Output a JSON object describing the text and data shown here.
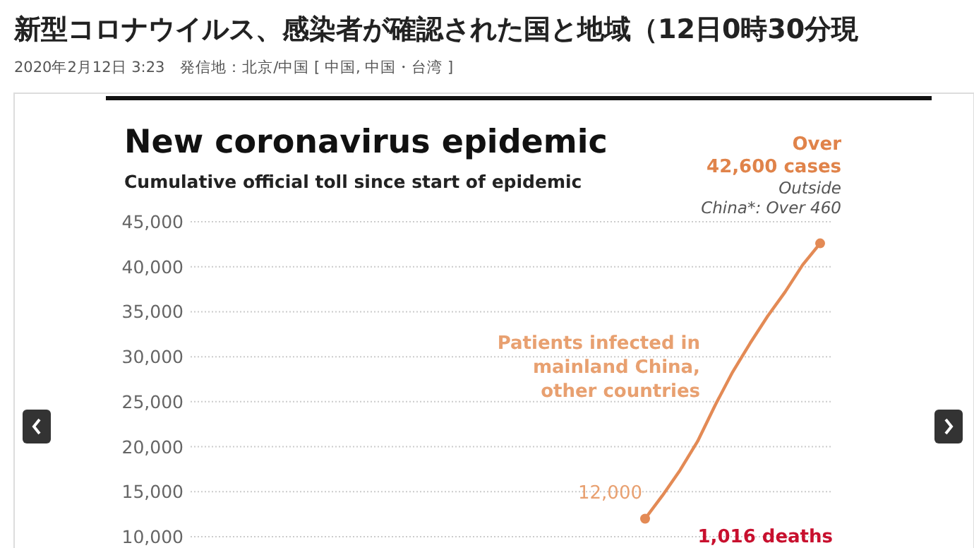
{
  "chart_data": {
    "type": "line",
    "title": "New coronavirus epidemic",
    "subtitle": "Cumulative official toll since start of epidemic",
    "annotations": [
      "新型コロナウイルス、感染者が確認された国と地域（12日0時30分現",
      "2020年2月12日 3:23　発信地：北京/中国 [ 中国, 中国・台湾 ]",
      "Over\n42,600 cases",
      "Outside\nChina*: Over 460",
      "Patients infected in\nmainland China,\nother countries",
      "12,000",
      "1,016 deaths"
    ],
    "categories": [
      null,
      null,
      null,
      null,
      null,
      null,
      null,
      null,
      null,
      null,
      null,
      null,
      null,
      null,
      null,
      null,
      null,
      null,
      null,
      null,
      null,
      null,
      null,
      null,
      null,
      null,
      null,
      null,
      null,
      null,
      null,
      null,
      null,
      null,
      null,
      null,
      null
    ],
    "series": [
      {
        "color": "#e38a55",
        "values": [
          null,
          null,
          null,
          null,
          null,
          null,
          null,
          null,
          null,
          null,
          null,
          null,
          null,
          null,
          null,
          null,
          null,
          null,
          null,
          null,
          null,
          null,
          null,
          null,
          null,
          null,
          12000,
          14600,
          17400,
          20600,
          24600,
          28300,
          31500,
          34500,
          37200,
          40200,
          42600
        ]
      },
      {
        "type": "scatter",
        "marker": "circle",
        "color": "#e38a55",
        "values": [
          null,
          null,
          null,
          null,
          null,
          null,
          null,
          null,
          null,
          null,
          null,
          null,
          null,
          null,
          null,
          null,
          null,
          null,
          null,
          null,
          null,
          null,
          null,
          null,
          null,
          null,
          12000,
          null,
          null,
          null,
          null,
          null,
          null,
          null,
          null,
          null,
          42600
        ]
      }
    ],
    "ylim": [
      10000,
      45000
    ],
    "yticks": [
      {
        "value": 10000,
        "label": "10,000"
      },
      {
        "value": 15000,
        "label": "15,000"
      },
      {
        "value": 20000,
        "label": "20,000"
      },
      {
        "value": 25000,
        "label": "25,000"
      },
      {
        "value": 30000,
        "label": "30,000"
      },
      {
        "value": 35000,
        "label": "35,000"
      },
      {
        "value": 40000,
        "label": "40,000"
      },
      {
        "value": 45000,
        "label": "45,000"
      }
    ],
    "grid": "y",
    "tick_labels": "y"
  }
}
